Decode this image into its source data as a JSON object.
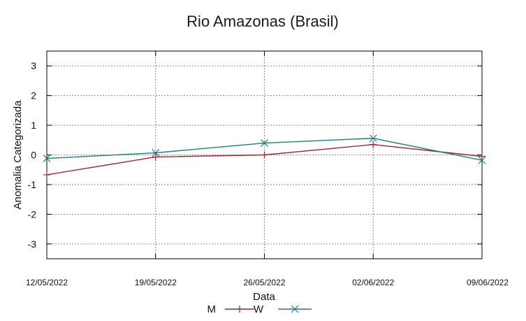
{
  "chart_data": {
    "type": "line",
    "title": "Rio Amazonas (Brasil)",
    "xlabel": "Data",
    "ylabel": "Anomalia Categorizada",
    "categories": [
      "12/05/2022",
      "19/05/2022",
      "26/05/2022",
      "02/06/2022",
      "09/06/2022"
    ],
    "y_ticks": [
      "3",
      "2",
      "1",
      "0",
      "-1",
      "-2",
      "-3"
    ],
    "ylim": [
      -3.5,
      3.5
    ],
    "grid": true,
    "legend_position": "bottom",
    "series": [
      {
        "name": "M",
        "marker": "+",
        "color": "#a0262f",
        "values": [
          -0.67,
          -0.07,
          0.0,
          0.35,
          -0.05
        ]
      },
      {
        "name": "W",
        "marker": "x",
        "color": "#1e7b80",
        "values": [
          -0.12,
          0.07,
          0.4,
          0.56,
          -0.18
        ]
      }
    ]
  }
}
